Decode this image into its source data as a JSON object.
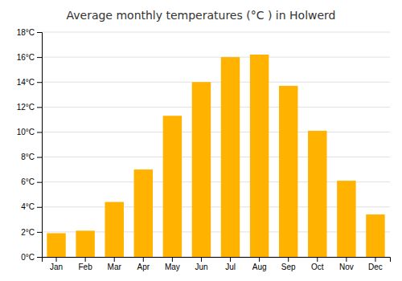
{
  "chart_data": {
    "type": "bar",
    "title": "Average monthly temperatures (°C ) in Holwerd",
    "categories": [
      "Jan",
      "Feb",
      "Mar",
      "Apr",
      "May",
      "Jun",
      "Jul",
      "Aug",
      "Sep",
      "Oct",
      "Nov",
      "Dec"
    ],
    "values": [
      1.9,
      2.1,
      4.4,
      7.0,
      11.3,
      14.0,
      16.0,
      16.2,
      13.7,
      10.1,
      6.1,
      3.4
    ],
    "color": "#FFB300",
    "ylim": [
      0,
      18
    ],
    "yticks": [
      {
        "value": 0,
        "label": "0°C"
      },
      {
        "value": 2,
        "label": "2°C"
      },
      {
        "value": 4,
        "label": "4°C"
      },
      {
        "value": 6,
        "label": "6°C"
      },
      {
        "value": 8,
        "label": "8°C"
      },
      {
        "value": 10,
        "label": "10°C"
      },
      {
        "value": 12,
        "label": "12°C"
      },
      {
        "value": 14,
        "label": "14°C"
      },
      {
        "value": 16,
        "label": "16°C"
      },
      {
        "value": 18,
        "label": "18°C"
      }
    ],
    "grid": true
  }
}
